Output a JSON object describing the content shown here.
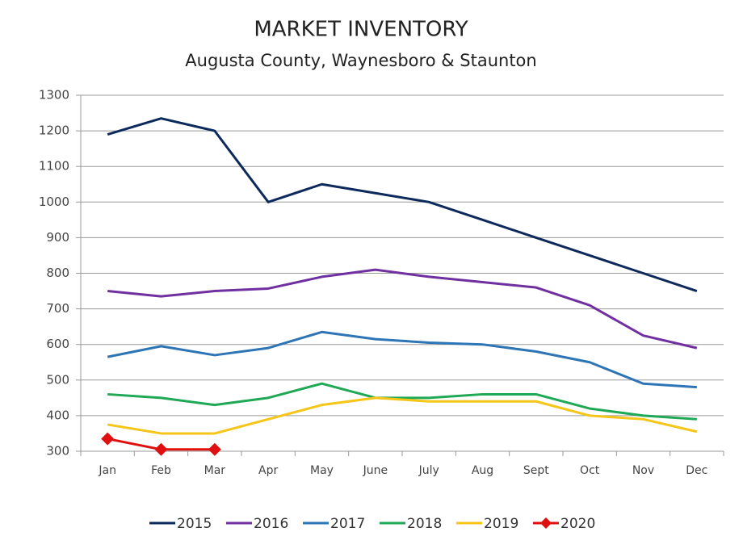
{
  "chart_data": {
    "type": "line",
    "title": "MARKET INVENTORY",
    "subtitle": "Augusta County, Waynesboro & Staunton",
    "categories": [
      "Jan",
      "Feb",
      "Mar",
      "Apr",
      "May",
      "June",
      "July",
      "Aug",
      "Sept",
      "Oct",
      "Nov",
      "Dec"
    ],
    "series": [
      {
        "name": "2015",
        "color": "#0d2a5c",
        "values": [
          1190,
          1235,
          1200,
          1000,
          1050,
          1025,
          1000,
          950,
          900,
          850,
          800,
          750
        ]
      },
      {
        "name": "2016",
        "color": "#7030a0",
        "values": [
          750,
          735,
          750,
          757,
          790,
          810,
          790,
          775,
          760,
          710,
          625,
          590
        ]
      },
      {
        "name": "2017",
        "color": "#2e75b6",
        "values": [
          565,
          595,
          570,
          590,
          635,
          615,
          605,
          600,
          580,
          550,
          490,
          480
        ]
      },
      {
        "name": "2018",
        "color": "#1fa855",
        "values": [
          460,
          450,
          430,
          450,
          490,
          450,
          450,
          460,
          460,
          420,
          400,
          390
        ]
      },
      {
        "name": "2019",
        "color": "#f5c518",
        "values": [
          375,
          350,
          350,
          390,
          430,
          450,
          440,
          440,
          440,
          400,
          390,
          355
        ]
      },
      {
        "name": "2020",
        "color": "#e01010",
        "marker": "diamond",
        "values": [
          335,
          305,
          305,
          null,
          null,
          null,
          null,
          null,
          null,
          null,
          null,
          null
        ]
      }
    ],
    "ylim": [
      300,
      1300
    ],
    "yticks": [
      300,
      400,
      500,
      600,
      700,
      800,
      900,
      1000,
      1100,
      1200,
      1300
    ],
    "grid": true,
    "legend": "bottom"
  }
}
